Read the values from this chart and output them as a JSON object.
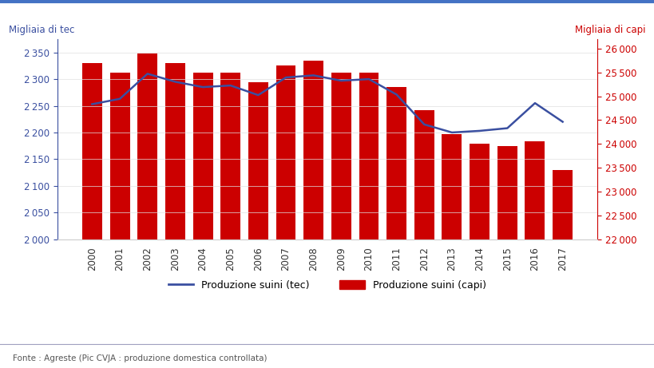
{
  "years": [
    2000,
    2001,
    2002,
    2003,
    2004,
    2005,
    2006,
    2007,
    2008,
    2009,
    2010,
    2011,
    2012,
    2013,
    2014,
    2015,
    2016,
    2017
  ],
  "bars_capi": [
    25700,
    25500,
    25900,
    25700,
    25500,
    25500,
    25300,
    25650,
    25750,
    25500,
    25500,
    25200,
    24700,
    24200,
    24000,
    23950,
    24050,
    23450
  ],
  "line_tec": [
    2253,
    2263,
    2310,
    2295,
    2285,
    2288,
    2270,
    2303,
    2307,
    2297,
    2300,
    2271,
    2215,
    2200,
    2203,
    2208,
    2255,
    2220
  ],
  "bar_color": "#cc0000",
  "line_color": "#3a4fa0",
  "left_ylabel": "Migliaia di tec",
  "right_ylabel": "Migliaia di capi",
  "ylim_left": [
    2000,
    2375
  ],
  "ylim_right": [
    22000,
    26200
  ],
  "yticks_left": [
    2000,
    2050,
    2100,
    2150,
    2200,
    2250,
    2300,
    2350
  ],
  "yticks_right": [
    22000,
    22500,
    23000,
    23500,
    24000,
    24500,
    25000,
    25500,
    26000
  ],
  "legend_line": "Produzione suini (tec)",
  "legend_bar": "Produzione suini (capi)",
  "source_text": "Fonte : Agreste (Pic CVJA : produzione domestica controllata)",
  "background_color": "#ffffff",
  "top_bar_color": "#4472c4",
  "bottom_line_color": "#a0a0c0"
}
